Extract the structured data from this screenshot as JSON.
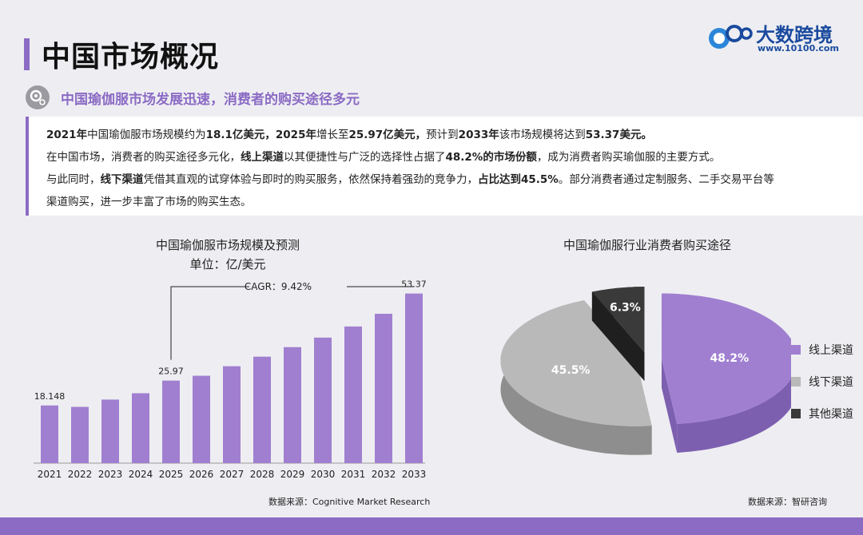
{
  "header": {
    "title": "中国市场概况",
    "subtitle": "中国瑜伽服市场发展迅速，消费者的购买途径多元"
  },
  "logo": {
    "mark": "100",
    "name": "大数跨境",
    "url": "www.10100.com"
  },
  "summary": {
    "line1": [
      {
        "t": "2021年",
        "b": true
      },
      {
        "t": "中国瑜伽服市场规模约为",
        "b": false
      },
      {
        "t": "18.1亿美元，2025年",
        "b": true
      },
      {
        "t": "增长至",
        "b": false
      },
      {
        "t": "25.97亿美元，",
        "b": true
      },
      {
        "t": "预计到",
        "b": false
      },
      {
        "t": "2033年",
        "b": true
      },
      {
        "t": "该市场规模将达到",
        "b": false
      },
      {
        "t": "53.37美元。",
        "b": true
      }
    ],
    "line2": [
      {
        "t": "在中国市场，消费者的购买途径多元化，",
        "b": false
      },
      {
        "t": "线上渠道",
        "b": true
      },
      {
        "t": "以其便捷性与广泛的选择性占据了",
        "b": false
      },
      {
        "t": "48.2%的市场份额",
        "b": true
      },
      {
        "t": "，成为消费者购买瑜伽服的主要方式。",
        "b": false
      }
    ],
    "line3": [
      {
        "t": "与此同时，",
        "b": false
      },
      {
        "t": "线下渠道",
        "b": true
      },
      {
        "t": "凭借其直观的试穿体验与即时的购买服务，依然保持着强劲的竞争力，",
        "b": false
      },
      {
        "t": "占比达到45.5%",
        "b": true
      },
      {
        "t": "。部分消费者通过定制服务、二手交易平台等",
        "b": false
      }
    ],
    "line4": [
      {
        "t": "渠道购买，进一步丰富了市场的购买生态。",
        "b": false
      }
    ]
  },
  "chart_data": [
    {
      "type": "bar",
      "title": "中国瑜伽服市场规模及预测",
      "subtitle": "单位：亿/美元",
      "categories": [
        "2021",
        "2022",
        "2023",
        "2024",
        "2025",
        "2026",
        "2027",
        "2028",
        "2029",
        "2030",
        "2031",
        "2032",
        "2033"
      ],
      "values": [
        18.148,
        17.7,
        20.0,
        22.0,
        25.97,
        27.5,
        30.5,
        33.5,
        36.5,
        39.5,
        43.0,
        47.0,
        53.37
      ],
      "value_labels": {
        "0": "18.148",
        "4": "25.97",
        "12": "53.37"
      },
      "annotation": "CAGR：9.42%",
      "color": "#a07fd0",
      "source": "数据来源：Cognitive Market Research"
    },
    {
      "type": "pie",
      "title": "中国瑜伽服行业消费者购买途径",
      "labels": [
        "线上渠道",
        "线下渠道",
        "其他渠道"
      ],
      "values": [
        48.2,
        45.5,
        6.3
      ],
      "value_labels": [
        "48.2%",
        "45.5%",
        "6.3%"
      ],
      "colors": [
        "#a07fd0",
        "#b9b9b9",
        "#3a3a3a"
      ],
      "legend": "right",
      "source": "数据来源：智研咨询"
    }
  ]
}
